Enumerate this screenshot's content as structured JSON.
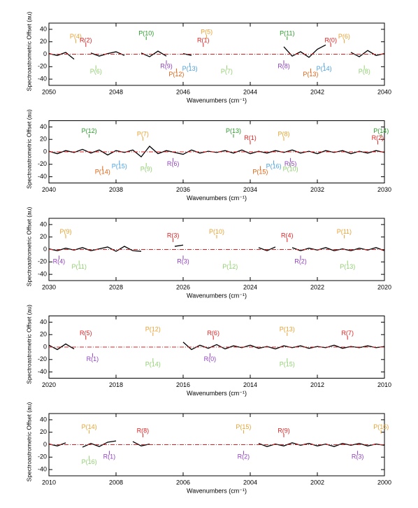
{
  "chart_data": [
    {
      "type": "line",
      "xlabel": "Wavenumbers (cm⁻¹)",
      "ylabel": "Spectroastrometric Offset (au)",
      "xlim": [
        2050,
        2040
      ],
      "xticks": [
        2050,
        2048,
        2046,
        2044,
        2042,
        2040
      ],
      "ylim": [
        -50,
        50
      ],
      "yticks": [
        -40,
        -20,
        0,
        20,
        40
      ],
      "series": [
        {
          "color": "#000000",
          "x": [
            2050,
            2049.75,
            2049.5,
            2049.25,
            2049,
            2048.75,
            2048.5,
            2048.25,
            2048,
            2047.75,
            2047.5,
            2047.25,
            2047,
            2046.75,
            2046.5,
            2046.25,
            2046,
            2045.75,
            2045.5,
            2045.25,
            2045,
            2044.75,
            2044.5,
            2044.25,
            2044,
            2043.75,
            2043.5,
            2043.25,
            2043,
            2042.75,
            2042.5,
            2042.25,
            2042,
            2041.75,
            2041.5,
            2041.25,
            2041,
            2040.75,
            2040.5,
            2040.25,
            2040
          ],
          "values": [
            1,
            -2,
            3,
            -8,
            null,
            2,
            -3,
            1,
            4,
            -2,
            null,
            2,
            -4,
            5,
            -3,
            null,
            1,
            -2,
            null,
            null,
            null,
            null,
            null,
            null,
            null,
            null,
            null,
            null,
            12,
            -3,
            4,
            -5,
            8,
            15,
            null,
            null,
            3,
            -4,
            6,
            -2,
            1
          ]
        },
        {
          "color": "#e02020",
          "dashed": true,
          "x": [
            2050,
            2040
          ],
          "values": [
            0,
            0
          ]
        }
      ],
      "annotations": [
        {
          "text": "P(4)",
          "x": 2049.2,
          "y": 28,
          "color": "#e8a030"
        },
        {
          "text": "R(2)",
          "x": 2048.9,
          "y": 22,
          "color": "#e02020"
        },
        {
          "text": "P(10)",
          "x": 2047.1,
          "y": 33,
          "color": "#2a9a2a"
        },
        {
          "text": "P(5)",
          "x": 2045.3,
          "y": 35,
          "color": "#e8a030"
        },
        {
          "text": "R(1)",
          "x": 2045.4,
          "y": 22,
          "color": "#e02020"
        },
        {
          "text": "P(11)",
          "x": 2042.9,
          "y": 33,
          "color": "#2a9a2a"
        },
        {
          "text": "R(0)",
          "x": 2041.6,
          "y": 22,
          "color": "#e02020"
        },
        {
          "text": "P(6)",
          "x": 2041.2,
          "y": 28,
          "color": "#e8a030"
        },
        {
          "text": "P(6)",
          "x": 2048.6,
          "y": -28,
          "color": "#90d070"
        },
        {
          "text": "R(9)",
          "x": 2046.5,
          "y": -20,
          "color": "#9040c0"
        },
        {
          "text": "P(12)",
          "x": 2046.2,
          "y": -33,
          "color": "#e06010"
        },
        {
          "text": "P(13)",
          "x": 2045.8,
          "y": -24,
          "color": "#4aa0e0"
        },
        {
          "text": "P(7)",
          "x": 2044.7,
          "y": -28,
          "color": "#90d070"
        },
        {
          "text": "R(8)",
          "x": 2043.0,
          "y": -20,
          "color": "#9040c0"
        },
        {
          "text": "P(13)",
          "x": 2042.2,
          "y": -33,
          "color": "#e06010"
        },
        {
          "text": "P(14)",
          "x": 2041.8,
          "y": -24,
          "color": "#4aa0e0"
        },
        {
          "text": "P(8)",
          "x": 2040.6,
          "y": -28,
          "color": "#90d070"
        }
      ]
    },
    {
      "type": "line",
      "xlabel": "Wavenumbers (cm⁻¹)",
      "ylabel": "Spectroastrometric Offset (au)",
      "xlim": [
        2040,
        2030
      ],
      "xticks": [
        2040,
        2038,
        2036,
        2034,
        2032,
        2030
      ],
      "ylim": [
        -50,
        50
      ],
      "yticks": [
        -40,
        -20,
        0,
        20,
        40
      ],
      "series": [
        {
          "color": "#000000",
          "x": [
            2040,
            2039.75,
            2039.5,
            2039.25,
            2039,
            2038.75,
            2038.5,
            2038.25,
            2038,
            2037.75,
            2037.5,
            2037.25,
            2037,
            2036.75,
            2036.5,
            2036.25,
            2036,
            2035.75,
            2035.5,
            2035.25,
            2035,
            2034.75,
            2034.5,
            2034.25,
            2034,
            2033.75,
            2033.5,
            2033.25,
            2033,
            2032.75,
            2032.5,
            2032.25,
            2032,
            2031.75,
            2031.5,
            2031.25,
            2031,
            2030.75,
            2030.5,
            2030.25,
            2030
          ],
          "values": [
            1,
            -3,
            2,
            -1,
            4,
            -2,
            3,
            -5,
            2,
            -1,
            3,
            -8,
            9,
            -3,
            2,
            -1,
            -4,
            3,
            -2,
            1,
            -1,
            2,
            -2,
            3,
            -3,
            1,
            -2,
            2,
            -1,
            3,
            -2,
            1,
            -3,
            2,
            -1,
            2,
            -3,
            1,
            -2,
            2,
            -1
          ]
        },
        {
          "color": "#e02020",
          "dashed": true,
          "x": [
            2040,
            2030
          ],
          "values": [
            0,
            0
          ]
        }
      ],
      "annotations": [
        {
          "text": "P(12)",
          "x": 2038.8,
          "y": 33,
          "color": "#2a9a2a"
        },
        {
          "text": "P(7)",
          "x": 2037.2,
          "y": 28,
          "color": "#e8a030"
        },
        {
          "text": "P(13)",
          "x": 2034.5,
          "y": 33,
          "color": "#2a9a2a"
        },
        {
          "text": "R(1)",
          "x": 2034.0,
          "y": 22,
          "color": "#e02020"
        },
        {
          "text": "P(8)",
          "x": 2033.0,
          "y": 28,
          "color": "#e8a030"
        },
        {
          "text": "P(14)",
          "x": 2030.1,
          "y": 33,
          "color": "#2a9a2a"
        },
        {
          "text": "R(2)",
          "x": 2030.2,
          "y": 22,
          "color": "#e02020"
        },
        {
          "text": "P(14)",
          "x": 2038.4,
          "y": -33,
          "color": "#e06010"
        },
        {
          "text": "P(15)",
          "x": 2037.9,
          "y": -24,
          "color": "#4aa0e0"
        },
        {
          "text": "P(9)",
          "x": 2037.1,
          "y": -28,
          "color": "#90d070"
        },
        {
          "text": "R(6)",
          "x": 2036.3,
          "y": -20,
          "color": "#9040c0"
        },
        {
          "text": "P(15)",
          "x": 2033.7,
          "y": -33,
          "color": "#e06010"
        },
        {
          "text": "P(16)",
          "x": 2033.3,
          "y": -24,
          "color": "#4aa0e0"
        },
        {
          "text": "R(5)",
          "x": 2032.8,
          "y": -20,
          "color": "#9040c0"
        },
        {
          "text": "P(10)",
          "x": 2032.8,
          "y": -28,
          "color": "#90d070"
        }
      ]
    },
    {
      "type": "line",
      "xlabel": "Wavenumbers (cm⁻¹)",
      "ylabel": "Spectroastrometric Offset (au)",
      "xlim": [
        2030,
        2020
      ],
      "xticks": [
        2030,
        2028,
        2026,
        2024,
        2022,
        2020
      ],
      "ylim": [
        -50,
        50
      ],
      "yticks": [
        -40,
        -20,
        0,
        20,
        40
      ],
      "series": [
        {
          "color": "#000000",
          "x": [
            2030,
            2029.75,
            2029.5,
            2029.25,
            2029,
            2028.75,
            2028.5,
            2028.25,
            2028,
            2027.75,
            2027.5,
            2027.25,
            2027,
            2026.75,
            2026.5,
            2026.25,
            2026,
            2025.75,
            2025.5,
            2025.25,
            2025,
            2024.75,
            2024.5,
            2024.25,
            2024,
            2023.75,
            2023.5,
            2023.25,
            2023,
            2022.75,
            2022.5,
            2022.25,
            2022,
            2021.75,
            2021.5,
            2021.25,
            2021,
            2020.75,
            2020.5,
            2020.25,
            2020
          ],
          "values": [
            1,
            -2,
            2,
            -1,
            3,
            -2,
            1,
            4,
            -3,
            5,
            -2,
            -3,
            null,
            null,
            null,
            5,
            7,
            null,
            null,
            null,
            null,
            null,
            null,
            null,
            null,
            3,
            -2,
            4,
            null,
            3,
            -2,
            2,
            -1,
            3,
            -2,
            1,
            -2,
            2,
            -1,
            3,
            -2
          ]
        },
        {
          "color": "#e02020",
          "dashed": true,
          "x": [
            2030,
            2020
          ],
          "values": [
            0,
            0
          ]
        }
      ],
      "annotations": [
        {
          "text": "P(9)",
          "x": 2029.5,
          "y": 28,
          "color": "#e8a030"
        },
        {
          "text": "R(3)",
          "x": 2026.3,
          "y": 22,
          "color": "#e02020"
        },
        {
          "text": "P(10)",
          "x": 2025.0,
          "y": 28,
          "color": "#e8a030"
        },
        {
          "text": "R(4)",
          "x": 2022.9,
          "y": 22,
          "color": "#e02020"
        },
        {
          "text": "P(11)",
          "x": 2021.2,
          "y": 28,
          "color": "#e8a030"
        },
        {
          "text": "R(4)",
          "x": 2029.7,
          "y": -20,
          "color": "#9040c0"
        },
        {
          "text": "P(11)",
          "x": 2029.1,
          "y": -28,
          "color": "#90d070"
        },
        {
          "text": "R(3)",
          "x": 2026.0,
          "y": -20,
          "color": "#9040c0"
        },
        {
          "text": "P(12)",
          "x": 2024.6,
          "y": -28,
          "color": "#90d070"
        },
        {
          "text": "R(2)",
          "x": 2022.5,
          "y": -20,
          "color": "#9040c0"
        },
        {
          "text": "P(13)",
          "x": 2021.1,
          "y": -28,
          "color": "#90d070"
        }
      ]
    },
    {
      "type": "line",
      "xlabel": "Wavenumbers (cm⁻¹)",
      "ylabel": "Spectroastrometric Offset (au)",
      "xlim": [
        2020,
        2010
      ],
      "xticks": [
        2020,
        2018,
        2016,
        2014,
        2012,
        2010
      ],
      "ylim": [
        -50,
        50
      ],
      "yticks": [
        -40,
        -20,
        0,
        20,
        40
      ],
      "series": [
        {
          "color": "#000000",
          "x": [
            2020,
            2019.75,
            2019.5,
            2019.25,
            2019,
            2018.75,
            2018.5,
            2018.25,
            2018,
            2017.75,
            2017.5,
            2017.25,
            2017,
            2016.75,
            2016.5,
            2016.25,
            2016,
            2015.75,
            2015.5,
            2015.25,
            2015,
            2014.75,
            2014.5,
            2014.25,
            2014,
            2013.75,
            2013.5,
            2013.25,
            2013,
            2012.75,
            2012.5,
            2012.25,
            2012,
            2011.75,
            2011.5,
            2011.25,
            2011,
            2010.75,
            2010.5,
            2010.25,
            2010
          ],
          "values": [
            3,
            -4,
            5,
            -3,
            null,
            null,
            null,
            null,
            null,
            null,
            null,
            null,
            null,
            null,
            null,
            null,
            8,
            -4,
            3,
            -2,
            4,
            -3,
            2,
            -1,
            3,
            -2,
            1,
            -3,
            2,
            -1,
            2,
            -2,
            1,
            -1,
            3,
            -2,
            1,
            -1,
            2,
            -1,
            1
          ]
        },
        {
          "color": "#e02020",
          "dashed": true,
          "x": [
            2020,
            2010
          ],
          "values": [
            0,
            0
          ]
        }
      ],
      "annotations": [
        {
          "text": "R(5)",
          "x": 2018.9,
          "y": 22,
          "color": "#e02020"
        },
        {
          "text": "P(12)",
          "x": 2016.9,
          "y": 28,
          "color": "#e8a030"
        },
        {
          "text": "R(6)",
          "x": 2015.1,
          "y": 22,
          "color": "#e02020"
        },
        {
          "text": "P(13)",
          "x": 2012.9,
          "y": 28,
          "color": "#e8a030"
        },
        {
          "text": "R(7)",
          "x": 2011.1,
          "y": 22,
          "color": "#e02020"
        },
        {
          "text": "R(1)",
          "x": 2018.7,
          "y": -20,
          "color": "#9040c0"
        },
        {
          "text": "P(14)",
          "x": 2016.9,
          "y": -28,
          "color": "#90d070"
        },
        {
          "text": "R(0)",
          "x": 2015.2,
          "y": -20,
          "color": "#9040c0"
        },
        {
          "text": "P(15)",
          "x": 2012.9,
          "y": -28,
          "color": "#90d070"
        }
      ]
    },
    {
      "type": "line",
      "xlabel": "Wavenumbers (cm⁻¹)",
      "ylabel": "Spectroastrometric Offset (au)",
      "xlim": [
        2010,
        2000
      ],
      "xticks": [
        2010,
        2008,
        2006,
        2004,
        2002,
        2000
      ],
      "ylim": [
        -50,
        50
      ],
      "yticks": [
        -40,
        -20,
        0,
        20,
        40
      ],
      "series": [
        {
          "color": "#000000",
          "x": [
            2010,
            2009.75,
            2009.5,
            2009.25,
            2009,
            2008.75,
            2008.5,
            2008.25,
            2008,
            2007.75,
            2007.5,
            2007.25,
            2007,
            2006.75,
            2006.5,
            2006.25,
            2006,
            2005.75,
            2005.5,
            2005.25,
            2005,
            2004.75,
            2004.5,
            2004.25,
            2004,
            2003.75,
            2003.5,
            2003.25,
            2003,
            2002.75,
            2002.5,
            2002.25,
            2002,
            2001.75,
            2001.5,
            2001.25,
            2001,
            2000.75,
            2000.5,
            2000.25,
            2000
          ],
          "values": [
            1,
            -2,
            3,
            null,
            -4,
            2,
            -3,
            4,
            6,
            null,
            5,
            -2,
            1,
            null,
            null,
            null,
            null,
            null,
            null,
            null,
            null,
            null,
            null,
            null,
            null,
            2,
            -3,
            1,
            -2,
            3,
            -1,
            2,
            -2,
            1,
            -3,
            2,
            -1,
            2,
            -2,
            1,
            -1
          ]
        },
        {
          "color": "#e02020",
          "dashed": true,
          "x": [
            2010,
            2000
          ],
          "values": [
            0,
            0
          ]
        }
      ],
      "annotations": [
        {
          "text": "P(14)",
          "x": 2008.8,
          "y": 28,
          "color": "#e8a030"
        },
        {
          "text": "R(8)",
          "x": 2007.2,
          "y": 22,
          "color": "#e02020"
        },
        {
          "text": "P(15)",
          "x": 2004.2,
          "y": 28,
          "color": "#e8a030"
        },
        {
          "text": "R(9)",
          "x": 2003.0,
          "y": 22,
          "color": "#e02020"
        },
        {
          "text": "P(16)",
          "x": 2000.1,
          "y": 28,
          "color": "#e8a030"
        },
        {
          "text": "P(16)",
          "x": 2008.8,
          "y": -28,
          "color": "#90d070"
        },
        {
          "text": "R(1)",
          "x": 2008.2,
          "y": -20,
          "color": "#9040c0"
        },
        {
          "text": "R(2)",
          "x": 2004.2,
          "y": -20,
          "color": "#9040c0"
        },
        {
          "text": "R(3)",
          "x": 2000.8,
          "y": -20,
          "color": "#9040c0"
        }
      ]
    }
  ]
}
